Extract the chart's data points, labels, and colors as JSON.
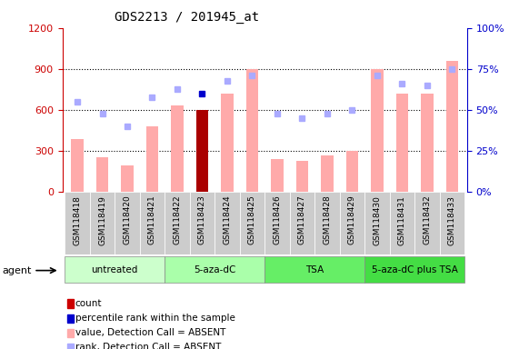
{
  "title": "GDS2213 / 201945_at",
  "samples": [
    "GSM118418",
    "GSM118419",
    "GSM118420",
    "GSM118421",
    "GSM118422",
    "GSM118423",
    "GSM118424",
    "GSM118425",
    "GSM118426",
    "GSM118427",
    "GSM118428",
    "GSM118429",
    "GSM118430",
    "GSM118431",
    "GSM118432",
    "GSM118433"
  ],
  "bar_values": [
    390,
    255,
    195,
    480,
    630,
    600,
    720,
    900,
    240,
    225,
    270,
    300,
    900,
    720,
    720,
    960
  ],
  "bar_colors": [
    "#ffaaaa",
    "#ffaaaa",
    "#ffaaaa",
    "#ffaaaa",
    "#ffaaaa",
    "#aa0000",
    "#ffaaaa",
    "#ffaaaa",
    "#ffaaaa",
    "#ffaaaa",
    "#ffaaaa",
    "#ffaaaa",
    "#ffaaaa",
    "#ffaaaa",
    "#ffaaaa",
    "#ffaaaa"
  ],
  "rank_dots": [
    660,
    570,
    480,
    690,
    750,
    720,
    810,
    855,
    570,
    540,
    570,
    600,
    855,
    795,
    780,
    900
  ],
  "rank_dot_colors": [
    "#aaaaff",
    "#aaaaff",
    "#aaaaff",
    "#aaaaff",
    "#aaaaff",
    "#0000cc",
    "#aaaaff",
    "#aaaaff",
    "#aaaaff",
    "#aaaaff",
    "#aaaaff",
    "#aaaaff",
    "#aaaaff",
    "#aaaaff",
    "#aaaaff",
    "#aaaaff"
  ],
  "ylim_left": [
    0,
    1200
  ],
  "ylim_right": [
    0,
    100
  ],
  "yticks_left": [
    0,
    300,
    600,
    900,
    1200
  ],
  "yticks_right": [
    0,
    25,
    50,
    75,
    100
  ],
  "agent_groups": [
    {
      "label": "untreated",
      "start": 0,
      "end": 3,
      "color": "#ccffcc"
    },
    {
      "label": "5-aza-dC",
      "start": 4,
      "end": 7,
      "color": "#aaffaa"
    },
    {
      "label": "TSA",
      "start": 8,
      "end": 11,
      "color": "#66ee66"
    },
    {
      "label": "5-aza-dC plus TSA",
      "start": 12,
      "end": 15,
      "color": "#44dd44"
    }
  ],
  "legend_items": [
    {
      "color": "#cc0000",
      "label": "count"
    },
    {
      "color": "#0000cc",
      "label": "percentile rank within the sample"
    },
    {
      "color": "#ffaaaa",
      "label": "value, Detection Call = ABSENT"
    },
    {
      "color": "#aaaaff",
      "label": "rank, Detection Call = ABSENT"
    }
  ],
  "left_axis_color": "#cc0000",
  "right_axis_color": "#0000cc",
  "background_color": "#ffffff",
  "plot_bg_color": "#ffffff",
  "grid_color": "#000000",
  "bar_width": 0.5
}
